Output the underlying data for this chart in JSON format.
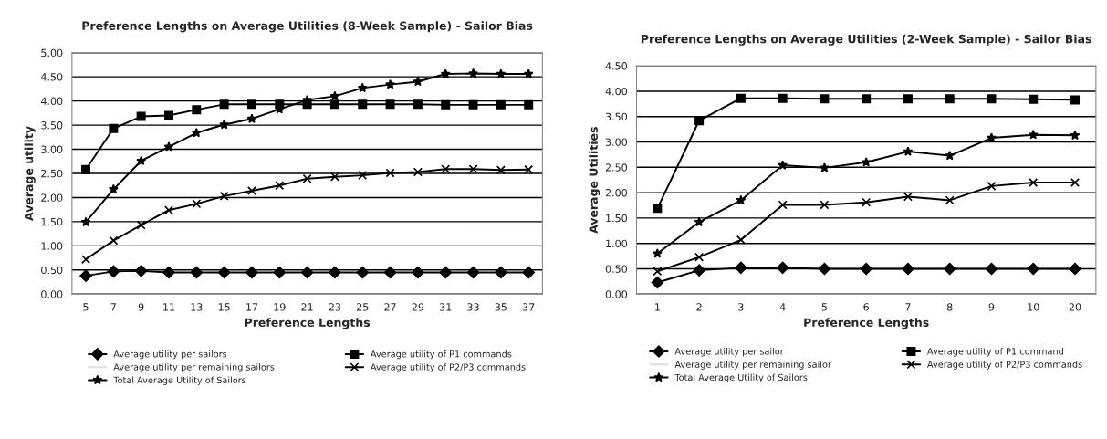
{
  "chart_data": [
    {
      "type": "line",
      "title": "Preference Lengths on Average Utilities (8-Week Sample) - Sailor Bias",
      "xlabel": "Preference Lengths",
      "ylabel": "Average utility",
      "categories": [
        "5",
        "7",
        "9",
        "11",
        "13",
        "15",
        "17",
        "19",
        "21",
        "23",
        "25",
        "27",
        "29",
        "31",
        "33",
        "35",
        "37"
      ],
      "series": [
        {
          "name": "Average utility per sailors",
          "color": "#000000",
          "marker": "diamond",
          "values": [
            0.38,
            0.47,
            0.48,
            0.45,
            0.45,
            0.45,
            0.45,
            0.45,
            0.45,
            0.45,
            0.45,
            0.45,
            0.45,
            0.45,
            0.45,
            0.45,
            0.45
          ]
        },
        {
          "name": "Average utility of P1 commands",
          "color": "#000000",
          "marker": "square",
          "values": [
            2.58,
            3.43,
            3.68,
            3.7,
            3.82,
            3.93,
            3.93,
            3.93,
            3.93,
            3.93,
            3.93,
            3.93,
            3.93,
            3.92,
            3.92,
            3.92,
            3.92
          ]
        },
        {
          "name": "Average utility per remaining sailors",
          "color": "#e0e0e0",
          "marker": "none",
          "values": [
            null,
            null,
            null,
            null,
            null,
            null,
            null,
            null,
            null,
            null,
            null,
            null,
            null,
            null,
            null,
            null,
            null
          ]
        },
        {
          "name": "Average utility of P2/P3 commands",
          "color": "#000000",
          "marker": "cross",
          "values": [
            0.72,
            1.11,
            1.43,
            1.74,
            1.87,
            2.03,
            2.14,
            2.25,
            2.39,
            2.43,
            2.46,
            2.51,
            2.53,
            2.59,
            2.59,
            2.57,
            2.58
          ]
        },
        {
          "name": "Total Average Utility of Sailors",
          "color": "#000000",
          "marker": "star",
          "values": [
            1.49,
            2.17,
            2.76,
            3.05,
            3.34,
            3.51,
            3.63,
            3.83,
            4.02,
            4.1,
            4.27,
            4.34,
            4.4,
            4.56,
            4.57,
            4.56,
            4.56
          ]
        }
      ],
      "ylim": [
        0,
        5
      ],
      "yticks": [
        {
          "value": 0,
          "label": "0.00"
        },
        {
          "value": 0.5,
          "label": "0.50"
        },
        {
          "value": 1,
          "label": "1.00"
        },
        {
          "value": 1.5,
          "label": "1.50"
        },
        {
          "value": 2,
          "label": "2.00"
        },
        {
          "value": 2.5,
          "label": "2.50"
        },
        {
          "value": 3,
          "label": "3.00"
        },
        {
          "value": 3.5,
          "label": "3.50"
        },
        {
          "value": 4,
          "label": "4.00"
        },
        {
          "value": 4.5,
          "label": "4.50"
        },
        {
          "value": 5,
          "label": "5.00"
        }
      ],
      "grid": "y",
      "legend": "bottom"
    },
    {
      "type": "line",
      "title": "Preference Lengths on Average Utilities (2-Week Sample) - Sailor Bias",
      "xlabel": "Preference Lengths",
      "ylabel": "Average Utilities",
      "categories": [
        "1",
        "2",
        "3",
        "4",
        "5",
        "6",
        "7",
        "8",
        "9",
        "10",
        "20"
      ],
      "series": [
        {
          "name": "Average utility per sailor",
          "color": "#000000",
          "marker": "diamond",
          "values": [
            0.23,
            0.47,
            0.52,
            0.52,
            0.5,
            0.5,
            0.5,
            0.5,
            0.5,
            0.5,
            0.5
          ]
        },
        {
          "name": "Average utility of P1 command",
          "color": "#000000",
          "marker": "square",
          "values": [
            1.69,
            3.42,
            3.86,
            3.86,
            3.85,
            3.85,
            3.85,
            3.85,
            3.85,
            3.84,
            3.83
          ]
        },
        {
          "name": "Average utility per remaining sailor",
          "color": "#e0e0e0",
          "marker": "none",
          "values": [
            null,
            null,
            null,
            null,
            null,
            null,
            null,
            null,
            null,
            null,
            null
          ]
        },
        {
          "name": "Average utility of P2/P3 commands",
          "color": "#000000",
          "marker": "cross",
          "values": [
            0.45,
            0.73,
            1.07,
            1.76,
            1.76,
            1.81,
            1.92,
            1.85,
            2.13,
            2.2,
            2.2
          ]
        },
        {
          "name": "Total Average Utility of Sailors",
          "color": "#000000",
          "marker": "star",
          "values": [
            0.8,
            1.42,
            1.85,
            2.54,
            2.49,
            2.6,
            2.81,
            2.73,
            3.08,
            3.14,
            3.13
          ]
        }
      ],
      "ylim": [
        0,
        4.5
      ],
      "yticks": [
        {
          "value": 0,
          "label": "0.00"
        },
        {
          "value": 0.5,
          "label": "0.50"
        },
        {
          "value": 1,
          "label": "1.00"
        },
        {
          "value": 1.5,
          "label": "1.50"
        },
        {
          "value": 2,
          "label": "2.00"
        },
        {
          "value": 2.5,
          "label": "2.50"
        },
        {
          "value": 3,
          "label": "3.00"
        },
        {
          "value": 3.5,
          "label": "3.50"
        },
        {
          "value": 4,
          "label": "4.00"
        },
        {
          "value": 4.5,
          "label": "4.50"
        }
      ],
      "grid": "y",
      "legend": "bottom"
    }
  ]
}
